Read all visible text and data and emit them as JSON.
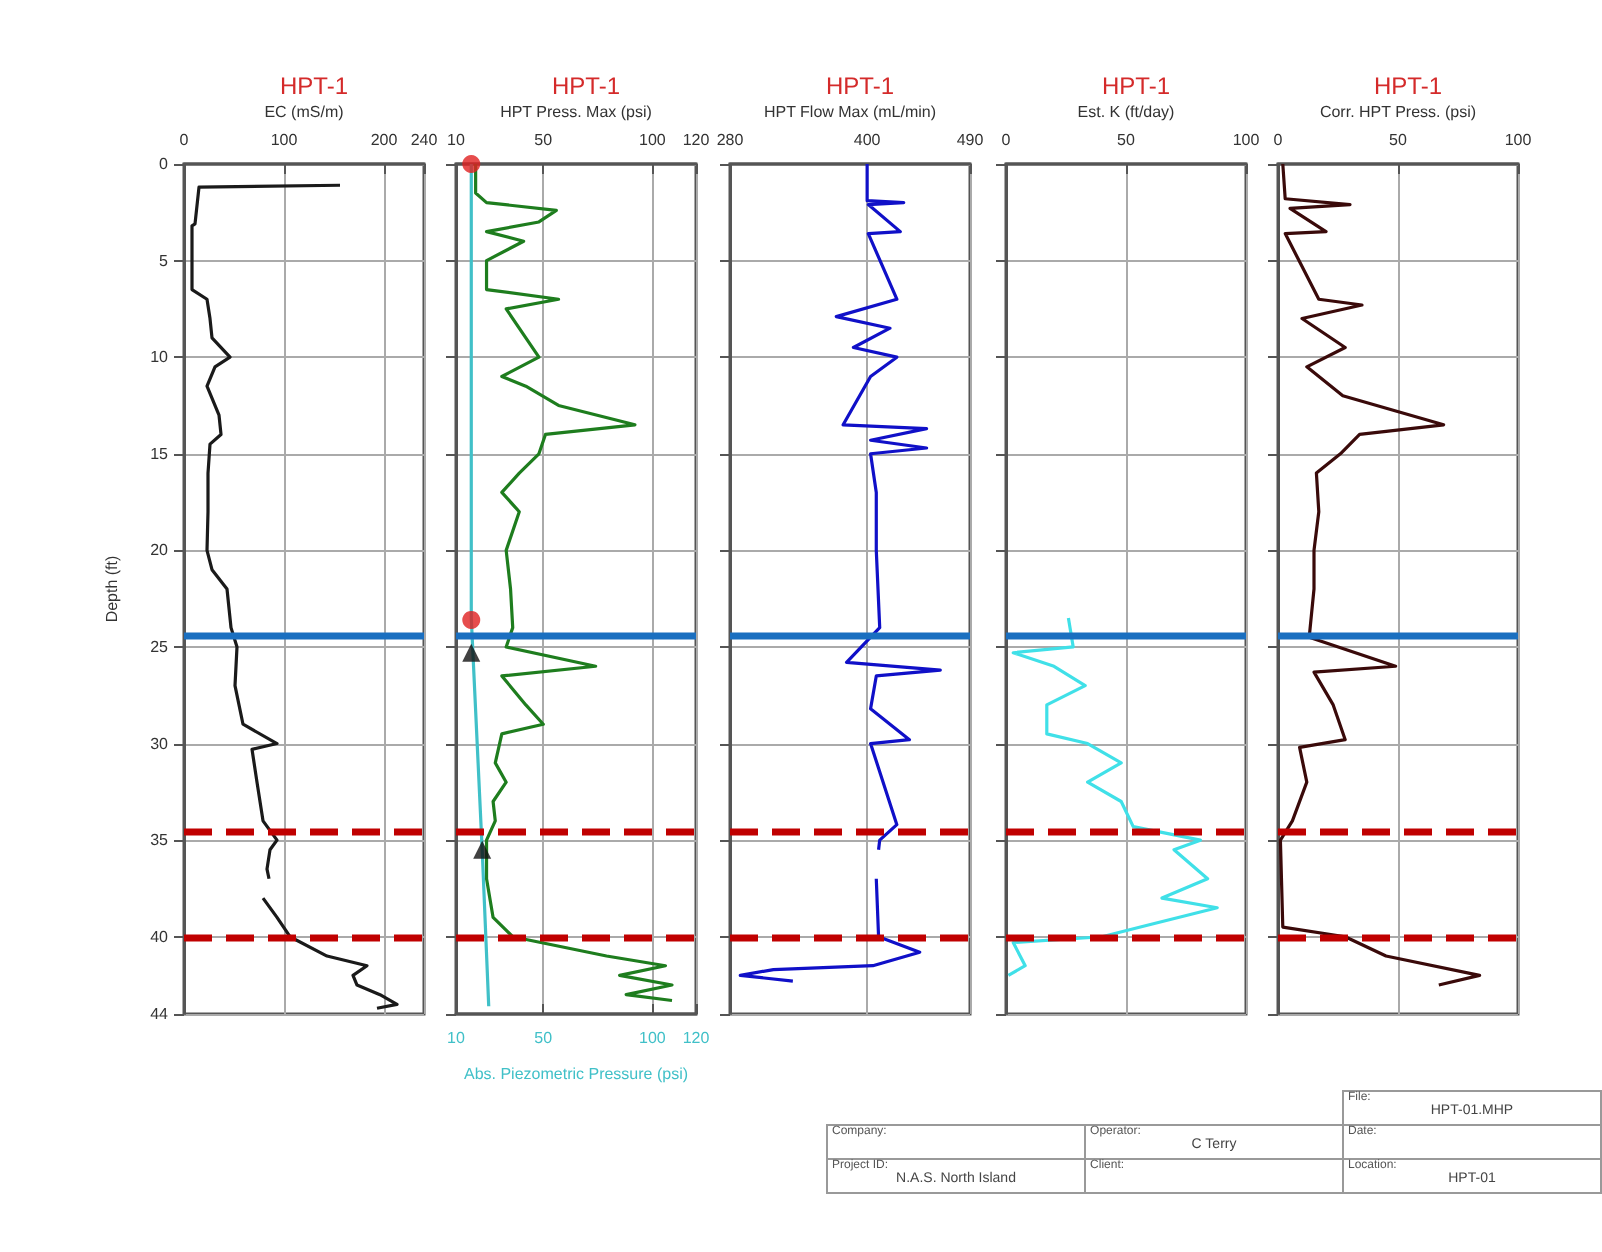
{
  "chart_data": [
    {
      "type": "line",
      "title": "HPT-1",
      "xlabel": "EC (mS/m)",
      "ylabel": "Depth (ft)",
      "xlim": [
        0,
        240
      ],
      "xticks": [
        0,
        100,
        200,
        240
      ],
      "ylim": [
        44,
        0
      ],
      "yticks": [
        0,
        5,
        10,
        15,
        20,
        25,
        30,
        35,
        40,
        44
      ],
      "grid": true,
      "marker": "none",
      "series": [
        {
          "color": "#1a1a1a",
          "x": [
            156,
            15,
            11,
            8,
            8,
            23,
            26,
            28,
            46,
            31,
            23,
            35,
            37,
            26,
            24,
            24,
            23,
            28,
            43,
            47,
            53,
            51,
            59,
            93,
            68,
            73,
            79,
            93,
            86,
            83,
            85,
            null,
            79,
            93,
            106,
            143,
            183,
            169,
            173,
            196,
            213,
            193
          ],
          "values": [
            1.1,
            1.2,
            3.1,
            3.2,
            6.5,
            7,
            8,
            9,
            10,
            10.5,
            11.5,
            13,
            14,
            14.5,
            16,
            18,
            20,
            21,
            22,
            24,
            25,
            27,
            29,
            30,
            30.3,
            32,
            34,
            35,
            35.5,
            36.5,
            37,
            null,
            38,
            39,
            40,
            41,
            41.5,
            42,
            42.5,
            43,
            43.5,
            43.7
          ]
        }
      ],
      "ref_lines": [
        {
          "axis": "y",
          "value": 24.4,
          "color": "#1a6fc0",
          "line_style": "solid"
        },
        {
          "axis": "y",
          "value": 34.6,
          "color": "#c00000",
          "line_style": "dashed"
        },
        {
          "axis": "y",
          "value": 40,
          "color": "#c00000",
          "line_style": "dashed"
        }
      ]
    },
    {
      "type": "line",
      "title": "HPT-1",
      "xlabel": "HPT Press. Max (psi)",
      "x2label": "Abs. Piezometric Pressure (psi)",
      "xlim": [
        10,
        120
      ],
      "xticks": [
        10,
        50,
        100,
        120
      ],
      "x2lim": [
        10,
        120
      ],
      "x2ticks": [
        10,
        50,
        100,
        120
      ],
      "ylim": [
        44,
        0
      ],
      "yticks": [
        0,
        5,
        10,
        15,
        20,
        25,
        30,
        35,
        40,
        44
      ],
      "grid": true,
      "marker": "none",
      "tick_labels": "x",
      "series": [
        {
          "color": "#1e7d1e",
          "x": [
            19,
            19,
            24,
            56,
            48,
            24,
            41,
            24,
            24,
            57,
            33,
            42,
            48,
            31,
            42,
            57,
            92,
            51,
            48,
            39,
            31,
            39,
            33,
            35,
            36,
            33,
            74,
            31,
            42,
            50,
            31,
            28,
            33,
            27,
            28,
            24,
            24,
            27,
            36,
            79,
            106,
            85,
            109,
            88,
            109
          ],
          "values": [
            0,
            1.5,
            2,
            2.4,
            3,
            3.5,
            4,
            5,
            6.5,
            7,
            7.5,
            9,
            10,
            11,
            11.5,
            12.5,
            13.5,
            14,
            15,
            16,
            17,
            18,
            20,
            22,
            24,
            25,
            26,
            26.5,
            28,
            29,
            29.5,
            31,
            32,
            33,
            34,
            35,
            37,
            39,
            40,
            41,
            41.5,
            42,
            42.5,
            43,
            43.3
          ]
        },
        {
          "color": "#40c0c8",
          "axis": "x2",
          "x": [
            17,
            17,
            22,
            25
          ],
          "values": [
            0,
            23.5,
            35.5,
            43.6
          ]
        },
        {
          "type": "scatter",
          "marker": "circle",
          "color": "#e02020",
          "axis": "x2",
          "x": [
            17,
            17
          ],
          "values": [
            0,
            23.6
          ]
        },
        {
          "type": "scatter",
          "marker": "triangle",
          "color": "#111111",
          "axis": "x2",
          "x": [
            17,
            22
          ],
          "values": [
            25.3,
            35.5
          ]
        }
      ],
      "ref_lines": [
        {
          "axis": "y",
          "value": 24.4,
          "color": "#1a6fc0",
          "line_style": "solid"
        },
        {
          "axis": "y",
          "value": 34.6,
          "color": "#c00000",
          "line_style": "dashed"
        },
        {
          "axis": "y",
          "value": 40,
          "color": "#c00000",
          "line_style": "dashed"
        }
      ]
    },
    {
      "type": "line",
      "title": "HPT-1",
      "xlabel": "HPT Flow Max (mL/min)",
      "xlim": [
        280,
        490
      ],
      "xticks": [
        280,
        400,
        490
      ],
      "ylim": [
        44,
        0
      ],
      "yticks": [
        0,
        5,
        10,
        15,
        20,
        25,
        30,
        35,
        40,
        44
      ],
      "grid": true,
      "marker": "none",
      "tick_labels": "x",
      "series": [
        {
          "color": "#1010c8",
          "x": [
            400,
            400,
            432,
            401,
            429,
            401,
            426,
            373,
            420,
            388,
            426,
            403,
            379,
            452,
            403,
            452,
            403,
            408,
            408,
            411,
            382,
            464,
            408,
            403,
            437,
            403,
            426,
            411,
            410,
            null,
            408,
            410,
            446,
            405,
            318,
            289,
            335
          ],
          "values": [
            0,
            1.9,
            2,
            2.1,
            3.5,
            3.6,
            7,
            7.9,
            8.5,
            9.5,
            10,
            11,
            13.5,
            13.7,
            14.3,
            14.7,
            15,
            17,
            20,
            24,
            25.8,
            26.2,
            26.5,
            28.2,
            29.8,
            30,
            34.2,
            35,
            35.5,
            null,
            37,
            40,
            40.8,
            41.5,
            41.7,
            42,
            42.3
          ]
        }
      ],
      "ref_lines": [
        {
          "axis": "y",
          "value": 24.4,
          "color": "#1a6fc0",
          "line_style": "solid"
        },
        {
          "axis": "y",
          "value": 34.6,
          "color": "#c00000",
          "line_style": "dashed"
        },
        {
          "axis": "y",
          "value": 40,
          "color": "#c00000",
          "line_style": "dashed"
        }
      ]
    },
    {
      "type": "line",
      "title": "HPT-1",
      "xlabel": "Est. K (ft/day)",
      "xlim": [
        0,
        100
      ],
      "xticks": [
        0,
        50,
        100
      ],
      "ylim": [
        44,
        0
      ],
      "yticks": [
        0,
        5,
        10,
        15,
        20,
        25,
        30,
        35,
        40,
        44
      ],
      "grid": true,
      "marker": "none",
      "tick_labels": "x",
      "series": [
        {
          "color": "#40e0e8",
          "x": [
            26,
            28,
            3,
            20,
            33,
            17,
            17,
            34,
            48,
            34,
            48,
            53,
            81,
            70,
            84,
            65,
            88,
            56,
            40,
            3,
            8,
            1
          ],
          "values": [
            23.5,
            25,
            25.3,
            26,
            27,
            28,
            29.5,
            30,
            31,
            32,
            33,
            34.3,
            35,
            35.5,
            37,
            38,
            38.5,
            39.5,
            40,
            40.3,
            41.5,
            42
          ]
        }
      ],
      "ref_lines": [
        {
          "axis": "y",
          "value": 24.4,
          "color": "#1a6fc0",
          "line_style": "solid"
        },
        {
          "axis": "y",
          "value": 34.6,
          "color": "#c00000",
          "line_style": "dashed"
        },
        {
          "axis": "y",
          "value": 40,
          "color": "#c00000",
          "line_style": "dashed"
        }
      ]
    },
    {
      "type": "line",
      "title": "HPT-1",
      "xlabel": "Corr. HPT Press. (psi)",
      "xlim": [
        0,
        100
      ],
      "xticks": [
        0,
        50,
        100
      ],
      "ylim": [
        44,
        0
      ],
      "yticks": [
        0,
        5,
        10,
        15,
        20,
        25,
        30,
        35,
        40,
        44
      ],
      "grid": true,
      "marker": "none",
      "tick_labels": "x",
      "series": [
        {
          "color": "#3a0a0a",
          "x": [
            2,
            3,
            30,
            5,
            20,
            3,
            17,
            35,
            10,
            28,
            12,
            27,
            69,
            34,
            26,
            16,
            17,
            15,
            15,
            13,
            49,
            15,
            23,
            28,
            9,
            12,
            6,
            1,
            2,
            28,
            45,
            84,
            67
          ],
          "values": [
            0,
            1.8,
            2.1,
            2.3,
            3.5,
            3.6,
            7,
            7.3,
            8,
            9.5,
            10.5,
            12,
            13.5,
            14,
            15,
            16,
            18,
            20,
            22,
            24.5,
            26,
            26.3,
            28,
            29.8,
            30.2,
            32,
            34,
            35,
            39.5,
            40,
            41,
            42,
            42.5
          ]
        }
      ],
      "ref_lines": [
        {
          "axis": "y",
          "value": 24.4,
          "color": "#1a6fc0",
          "line_style": "solid"
        },
        {
          "axis": "y",
          "value": 34.6,
          "color": "#c00000",
          "line_style": "dashed"
        },
        {
          "axis": "y",
          "value": 40,
          "color": "#c00000",
          "line_style": "dashed"
        }
      ]
    },
    {
      "type": "other",
      "annotations": [
        "File:",
        "HPT-01.MHP",
        "Company:",
        "Operator:",
        "C Terry",
        "Date:",
        "Project ID:",
        "N.A.S. North Island",
        "Client:",
        "Location:",
        "HPT-01"
      ]
    }
  ]
}
